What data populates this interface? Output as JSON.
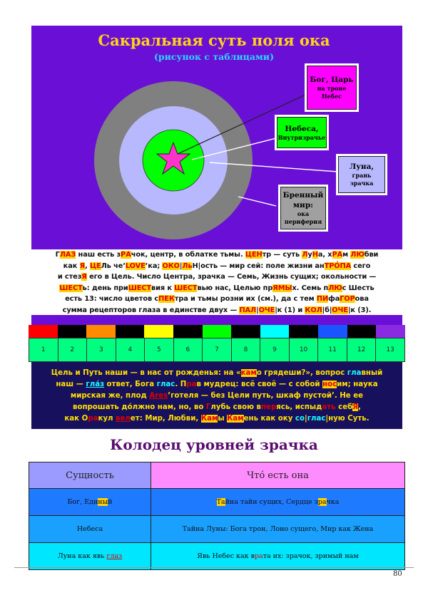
{
  "figure": {
    "title": "Сакральная суть поля ока",
    "subtitle": "(рисунок с таблицами)",
    "labels": {
      "god": [
        "Бог, Царь",
        "на троне",
        "Небес"
      ],
      "heaven": [
        "Небеса,",
        "Внутризрачье"
      ],
      "moon": [
        "Луна,",
        "грань зрачка"
      ],
      "mortal": [
        "Бренный",
        "мир:",
        "ока",
        "периферия"
      ]
    },
    "colors": {
      "panel": "#6a0fd6",
      "outer_ring": "#808080",
      "middle_ring": "#b8b8ff",
      "center": "#00ff00",
      "star": "#ff33cc",
      "box_god": "#ff00ff",
      "box_heaven": "#00ff00",
      "box_moon": "#b8b8ff",
      "box_mortal": "#a0a0a0"
    }
  },
  "paragraph1": {
    "lines": [
      [
        [
          "Г",
          ""
        ],
        [
          "ЛАЗ",
          "hlr"
        ],
        [
          " наш есть з",
          ""
        ],
        [
          "РА",
          "hlr"
        ],
        [
          "чок, центр, в облатке тьмы. ",
          ""
        ],
        [
          "ЦЕН",
          "hlr"
        ],
        [
          "тр — суть ",
          ""
        ],
        [
          "Л",
          "hlr"
        ],
        [
          "у",
          ""
        ],
        [
          "Н",
          "hlr"
        ],
        [
          "а, х",
          ""
        ],
        [
          "РА",
          "hlr"
        ],
        [
          "м ",
          ""
        ],
        [
          "ЛЮ",
          "hlr"
        ],
        [
          "бви",
          ""
        ]
      ],
      [
        [
          "как ",
          ""
        ],
        [
          "Я",
          "hlr"
        ],
        [
          ", ",
          ""
        ],
        [
          "ЦЕ",
          "hlr"
        ],
        [
          "Ль че’",
          ""
        ],
        [
          "LOVE",
          "hlr"
        ],
        [
          "’ка; ",
          ""
        ],
        [
          "ОКО",
          "hlr"
        ],
        [
          "|",
          ""
        ],
        [
          "Ль",
          "hlr"
        ],
        [
          "Н",
          ""
        ],
        [
          "|ость — мир сей: поле жизни ан",
          ""
        ],
        [
          "ТРО́ПА",
          "hlr"
        ],
        [
          " сего",
          ""
        ]
      ],
      [
        [
          "и стез",
          ""
        ],
        [
          "Я",
          "hlr"
        ],
        [
          " его в Цель. Число Центра, зрачка — Семь, Жизнь сущих; окольности —",
          ""
        ]
      ],
      [
        [
          "ШЕСТ",
          "hlr"
        ],
        [
          "ь: день при",
          ""
        ],
        [
          "ШЕСТ",
          "hlr"
        ],
        [
          "вия к ",
          ""
        ],
        [
          "ШЕСТ",
          "hlr"
        ],
        [
          "вью нас, Целью пр",
          ""
        ],
        [
          "ЯМЫ",
          "hlr"
        ],
        [
          "х. Семь п",
          ""
        ],
        [
          "ЛЮ",
          "hlr"
        ],
        [
          "с Шесть",
          ""
        ]
      ],
      [
        [
          "есть 13: число цветов с",
          ""
        ],
        [
          "ПЕК",
          "hlr"
        ],
        [
          "тра и тьмы розни их (см.), да с тем ",
          ""
        ],
        [
          "ПИ",
          "hlr"
        ],
        [
          "фа",
          ""
        ],
        [
          "ГОР",
          "hlr"
        ],
        [
          "ова",
          ""
        ]
      ],
      [
        [
          "сумма рецепторов глаза в единстве двух — ",
          ""
        ],
        [
          "ПАЛ",
          "hlr"
        ],
        [
          "|",
          ""
        ],
        [
          "ОЧЕ",
          "hlr"
        ],
        [
          "|к (1) и ",
          ""
        ],
        [
          "КОЛ",
          "hlr"
        ],
        [
          "|б|",
          ""
        ],
        [
          "ОЧЕ",
          "hlr"
        ],
        [
          "|к (3).",
          ""
        ]
      ]
    ]
  },
  "spectrum": {
    "colors": [
      "#ff0000",
      "#000000",
      "#ff8c00",
      "#000000",
      "#ffff00",
      "#000000",
      "#00ff00",
      "#000000",
      "#00ffff",
      "#000000",
      "#1a56ff",
      "#000000",
      "#8a2be2"
    ],
    "numbers": [
      "1",
      "2",
      "3",
      "4",
      "5",
      "6",
      "7",
      "8",
      "9",
      "10",
      "11",
      "12",
      "13"
    ]
  },
  "paragraph2": {
    "lines": [
      [
        [
          "Цель и Путь наши — в нас от рожденья: на «",
          ""
        ],
        [
          "кам",
          "hlr"
        ],
        [
          "о грядеши?», вопрос ",
          ""
        ],
        [
          "гла",
          "gb"
        ],
        [
          "вный",
          ""
        ]
      ],
      [
        [
          "наш — ",
          ""
        ],
        [
          "гла́з",
          "gbu"
        ],
        [
          " ответ, Бога ",
          ""
        ],
        [
          "глас",
          "gb"
        ],
        [
          ". П",
          ""
        ],
        [
          "ра",
          "rd"
        ],
        [
          "в мудрец: всё своё — с собой ",
          ""
        ],
        [
          "нос",
          "hlr"
        ],
        [
          "им; наука",
          ""
        ]
      ],
      [
        [
          "мирская же, плод ",
          ""
        ],
        [
          "Ares",
          "rdu"
        ],
        [
          "’готеля — без Цели путь, шкаф пустой’. Не ее",
          ""
        ]
      ],
      [
        [
          "вопрошать до́лжно нам, но, во ",
          ""
        ],
        [
          "Г",
          "rd"
        ],
        [
          "лубь свою в",
          ""
        ],
        [
          "пер",
          "rd"
        ],
        [
          "ясь, испыд",
          ""
        ],
        [
          "ать",
          "rd"
        ],
        [
          " себ",
          ""
        ],
        [
          "Я",
          "hlr"
        ],
        [
          ",",
          ""
        ]
      ],
      [
        [
          "как О",
          ""
        ],
        [
          "ра",
          "rd"
        ],
        [
          "кул ",
          ""
        ],
        [
          "вел",
          "rdu"
        ],
        [
          "ет: Мир, Любви, ",
          ""
        ],
        [
          "Кам",
          "hlr"
        ],
        [
          "ы ",
          ""
        ],
        [
          "Кам",
          "hlr"
        ],
        [
          "ень как оку ",
          ""
        ],
        [
          "со",
          "gb"
        ],
        [
          "|",
          ""
        ],
        [
          "глас",
          "gb"
        ],
        [
          "|ную Суть.",
          ""
        ]
      ]
    ]
  },
  "table": {
    "title": "Колодец уровней зрачка",
    "headers": [
      "Сущность",
      "Что́ есть она"
    ],
    "rows": [
      {
        "c1": [
          [
            "Бог, Еди",
            ""
          ],
          [
            "ны",
            "hl"
          ],
          [
            "й",
            ""
          ]
        ],
        "c2": [
          [
            "Та",
            "hl"
          ],
          [
            "йна тайн сущих, Сердце з",
            ""
          ],
          [
            "ра",
            "hl"
          ],
          [
            "чка",
            ""
          ]
        ],
        "bg": "#1e7bff"
      },
      {
        "c1": [
          [
            "Небеса",
            ""
          ]
        ],
        "c2": [
          [
            "Тайна Луны: Бога трон, Лоно сущего, Мир как Жена",
            ""
          ]
        ],
        "bg": "#1aa0ff"
      },
      {
        "c1": [
          [
            "Луна как явь ",
            ""
          ],
          [
            "глаз",
            "rdu"
          ]
        ],
        "c2": [
          [
            "Явь Небес как в",
            ""
          ],
          [
            "ра",
            "rd"
          ],
          [
            "та их: зрачок, зримый нам",
            ""
          ]
        ],
        "bg": "#00e6ff"
      }
    ],
    "header_colors": [
      "#9a9aff",
      "#ff8cff"
    ]
  },
  "page_number": "80"
}
